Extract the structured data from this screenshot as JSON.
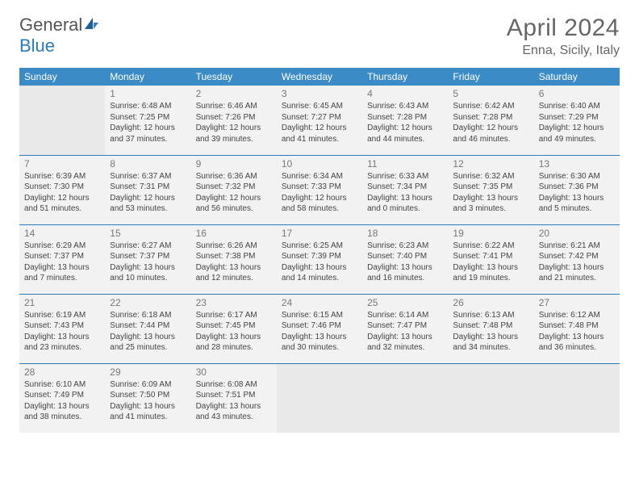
{
  "brand": {
    "text1": "General",
    "text2": "Blue"
  },
  "title": "April 2024",
  "location": "Enna, Sicily, Italy",
  "weekdays": [
    "Sunday",
    "Monday",
    "Tuesday",
    "Wednesday",
    "Thursday",
    "Friday",
    "Saturday"
  ],
  "colors": {
    "header_bg": "#3b8bc7",
    "rule": "#2b7bbf",
    "cell_bg": "#f2f2f2",
    "empty_bg": "#e9e9e9",
    "text": "#444444"
  },
  "weeks": [
    [
      null,
      {
        "n": "1",
        "sr": "6:48 AM",
        "ss": "7:25 PM",
        "dl": "12 hours and 37 minutes."
      },
      {
        "n": "2",
        "sr": "6:46 AM",
        "ss": "7:26 PM",
        "dl": "12 hours and 39 minutes."
      },
      {
        "n": "3",
        "sr": "6:45 AM",
        "ss": "7:27 PM",
        "dl": "12 hours and 41 minutes."
      },
      {
        "n": "4",
        "sr": "6:43 AM",
        "ss": "7:28 PM",
        "dl": "12 hours and 44 minutes."
      },
      {
        "n": "5",
        "sr": "6:42 AM",
        "ss": "7:28 PM",
        "dl": "12 hours and 46 minutes."
      },
      {
        "n": "6",
        "sr": "6:40 AM",
        "ss": "7:29 PM",
        "dl": "12 hours and 49 minutes."
      }
    ],
    [
      {
        "n": "7",
        "sr": "6:39 AM",
        "ss": "7:30 PM",
        "dl": "12 hours and 51 minutes."
      },
      {
        "n": "8",
        "sr": "6:37 AM",
        "ss": "7:31 PM",
        "dl": "12 hours and 53 minutes."
      },
      {
        "n": "9",
        "sr": "6:36 AM",
        "ss": "7:32 PM",
        "dl": "12 hours and 56 minutes."
      },
      {
        "n": "10",
        "sr": "6:34 AM",
        "ss": "7:33 PM",
        "dl": "12 hours and 58 minutes."
      },
      {
        "n": "11",
        "sr": "6:33 AM",
        "ss": "7:34 PM",
        "dl": "13 hours and 0 minutes."
      },
      {
        "n": "12",
        "sr": "6:32 AM",
        "ss": "7:35 PM",
        "dl": "13 hours and 3 minutes."
      },
      {
        "n": "13",
        "sr": "6:30 AM",
        "ss": "7:36 PM",
        "dl": "13 hours and 5 minutes."
      }
    ],
    [
      {
        "n": "14",
        "sr": "6:29 AM",
        "ss": "7:37 PM",
        "dl": "13 hours and 7 minutes."
      },
      {
        "n": "15",
        "sr": "6:27 AM",
        "ss": "7:37 PM",
        "dl": "13 hours and 10 minutes."
      },
      {
        "n": "16",
        "sr": "6:26 AM",
        "ss": "7:38 PM",
        "dl": "13 hours and 12 minutes."
      },
      {
        "n": "17",
        "sr": "6:25 AM",
        "ss": "7:39 PM",
        "dl": "13 hours and 14 minutes."
      },
      {
        "n": "18",
        "sr": "6:23 AM",
        "ss": "7:40 PM",
        "dl": "13 hours and 16 minutes."
      },
      {
        "n": "19",
        "sr": "6:22 AM",
        "ss": "7:41 PM",
        "dl": "13 hours and 19 minutes."
      },
      {
        "n": "20",
        "sr": "6:21 AM",
        "ss": "7:42 PM",
        "dl": "13 hours and 21 minutes."
      }
    ],
    [
      {
        "n": "21",
        "sr": "6:19 AM",
        "ss": "7:43 PM",
        "dl": "13 hours and 23 minutes."
      },
      {
        "n": "22",
        "sr": "6:18 AM",
        "ss": "7:44 PM",
        "dl": "13 hours and 25 minutes."
      },
      {
        "n": "23",
        "sr": "6:17 AM",
        "ss": "7:45 PM",
        "dl": "13 hours and 28 minutes."
      },
      {
        "n": "24",
        "sr": "6:15 AM",
        "ss": "7:46 PM",
        "dl": "13 hours and 30 minutes."
      },
      {
        "n": "25",
        "sr": "6:14 AM",
        "ss": "7:47 PM",
        "dl": "13 hours and 32 minutes."
      },
      {
        "n": "26",
        "sr": "6:13 AM",
        "ss": "7:48 PM",
        "dl": "13 hours and 34 minutes."
      },
      {
        "n": "27",
        "sr": "6:12 AM",
        "ss": "7:48 PM",
        "dl": "13 hours and 36 minutes."
      }
    ],
    [
      {
        "n": "28",
        "sr": "6:10 AM",
        "ss": "7:49 PM",
        "dl": "13 hours and 38 minutes."
      },
      {
        "n": "29",
        "sr": "6:09 AM",
        "ss": "7:50 PM",
        "dl": "13 hours and 41 minutes."
      },
      {
        "n": "30",
        "sr": "6:08 AM",
        "ss": "7:51 PM",
        "dl": "13 hours and 43 minutes."
      },
      null,
      null,
      null,
      null
    ]
  ],
  "labels": {
    "sunrise": "Sunrise:",
    "sunset": "Sunset:",
    "daylight": "Daylight:"
  }
}
